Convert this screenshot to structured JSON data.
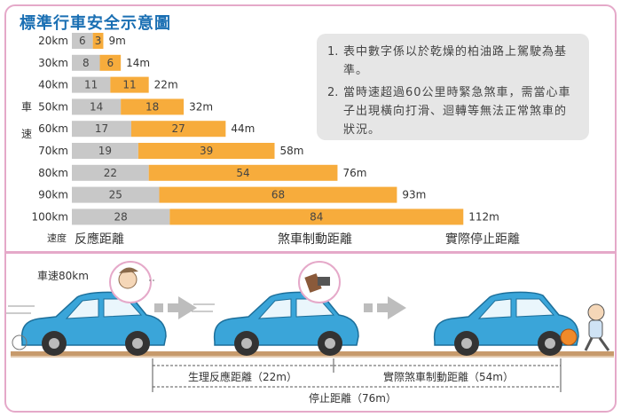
{
  "title": "標準行車安全示意圖",
  "chart_data": {
    "type": "bar",
    "stacked": true,
    "orientation": "horizontal",
    "categories": [
      "20km",
      "30km",
      "40km",
      "50km",
      "60km",
      "70km",
      "80km",
      "90km",
      "100km"
    ],
    "series": [
      {
        "name": "反應距離",
        "values": [
          6,
          8,
          11,
          14,
          17,
          19,
          22,
          25,
          28
        ],
        "color": "#c8c8c8"
      },
      {
        "name": "煞車制動距離",
        "values": [
          3,
          6,
          11,
          18,
          27,
          39,
          54,
          68,
          84
        ],
        "color": "#f7ac3c"
      }
    ],
    "totals": [
      "9m",
      "14m",
      "22m",
      "32m",
      "44m",
      "58m",
      "76m",
      "93m",
      "112m"
    ],
    "total_label": "實際停止距離",
    "ylabel": "車速",
    "y_axis_unit": "速度"
  },
  "notes": [
    {
      "num": "1.",
      "text": "表中數字係以於乾燥的柏油路上駕駛為基準。"
    },
    {
      "num": "2.",
      "text": "當時速超過60公里時緊急煞車，需當心車子出現橫向打滑、迴轉等無法正常煞車的狀況。"
    }
  ],
  "scene": {
    "speed_label": "車速80km",
    "reaction_label": "生理反應距離（22m）",
    "braking_label": "實際煞車制動距離（54m）",
    "stopping_label": "停止距離（76m）"
  },
  "colors": {
    "reaction": "#c8c8c8",
    "braking": "#f7ac3c",
    "title": "#1a6fb3",
    "car": "#3aa5d9",
    "frame": "#e5a9c9"
  }
}
